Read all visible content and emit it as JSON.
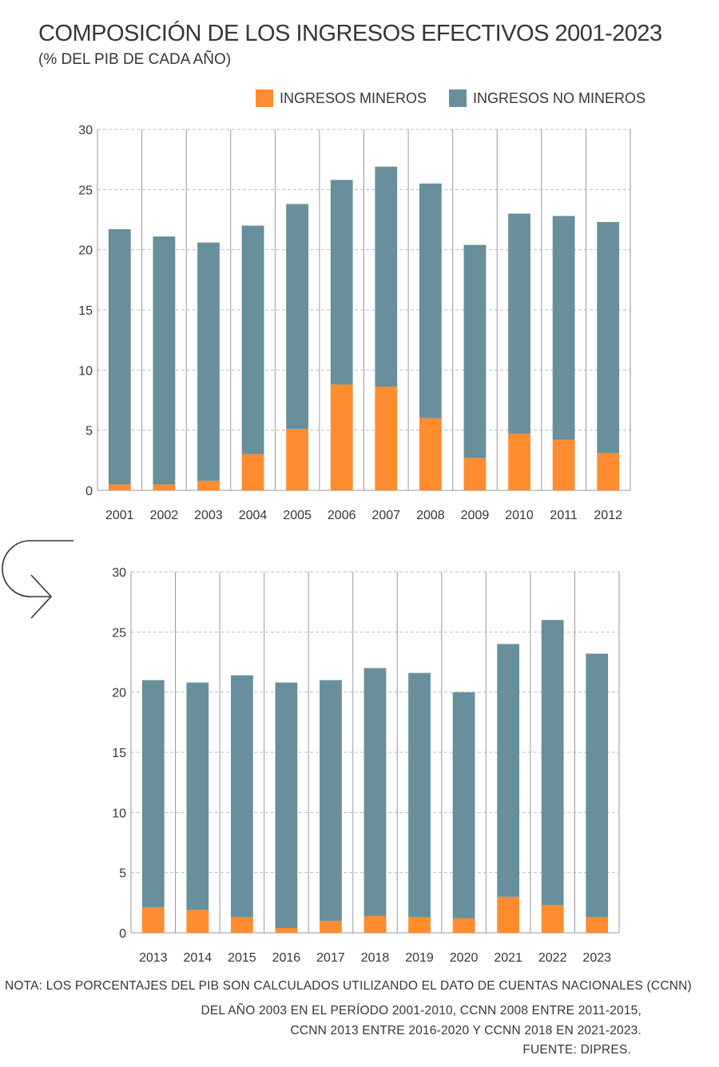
{
  "title": "COMPOSICIÓN DE LOS INGRESOS EFECTIVOS 2001-2023",
  "subtitle": "(% DEL PIB DE CADA AÑO)",
  "legend": {
    "mineros": "INGRESOS MINEROS",
    "no_mineros": "INGRESOS NO MINEROS"
  },
  "colors": {
    "mineros": "#ff8c2e",
    "no_mineros": "#678f9c",
    "grid": "#bdbdbd",
    "axis": "#9a9a9a"
  },
  "notes": {
    "line1": "NOTA: LOS PORCENTAJES DEL PIB SON CALCULADOS UTILIZANDO EL DATO DE CUENTAS NACIONALES (CCNN)",
    "line2": "DEL AÑO 2003 EN EL PERÍODO 2001-2010, CCNN 2008 ENTRE 2011-2015,",
    "line3": "CCNN 2013 ENTRE 2016-2020 Y CCNN 2018 EN 2021-2023.",
    "line4": "FUENTE: DIPRES."
  },
  "chart_data": [
    {
      "type": "bar",
      "stacked": true,
      "categories": [
        "2001",
        "2002",
        "2003",
        "2004",
        "2005",
        "2006",
        "2007",
        "2008",
        "2009",
        "2010",
        "2011",
        "2012"
      ],
      "series": [
        {
          "name": "INGRESOS MINEROS",
          "values": [
            0.5,
            0.5,
            0.8,
            3.0,
            5.1,
            8.8,
            8.6,
            6.0,
            2.7,
            4.7,
            4.2,
            3.1
          ]
        },
        {
          "name": "INGRESOS NO MINEROS",
          "values": [
            21.2,
            20.6,
            19.8,
            19.0,
            18.7,
            17.0,
            18.3,
            19.5,
            17.7,
            18.3,
            18.6,
            19.2
          ]
        }
      ],
      "ylim": [
        0,
        30
      ],
      "yticks": [
        0,
        5,
        10,
        15,
        20,
        25,
        30
      ],
      "grid": true
    },
    {
      "type": "bar",
      "stacked": true,
      "categories": [
        "2013",
        "2014",
        "2015",
        "2016",
        "2017",
        "2018",
        "2019",
        "2020",
        "2021",
        "2022",
        "2023"
      ],
      "series": [
        {
          "name": "INGRESOS MINEROS",
          "values": [
            2.1,
            1.9,
            1.3,
            0.4,
            1.0,
            1.4,
            1.3,
            1.2,
            3.0,
            2.3,
            1.3
          ]
        },
        {
          "name": "INGRESOS NO MINEROS",
          "values": [
            18.9,
            18.9,
            20.1,
            20.4,
            20.0,
            20.6,
            20.3,
            18.8,
            21.0,
            23.7,
            21.9
          ]
        }
      ],
      "ylim": [
        0,
        30
      ],
      "yticks": [
        0,
        5,
        10,
        15,
        20,
        25,
        30
      ],
      "grid": true
    }
  ]
}
